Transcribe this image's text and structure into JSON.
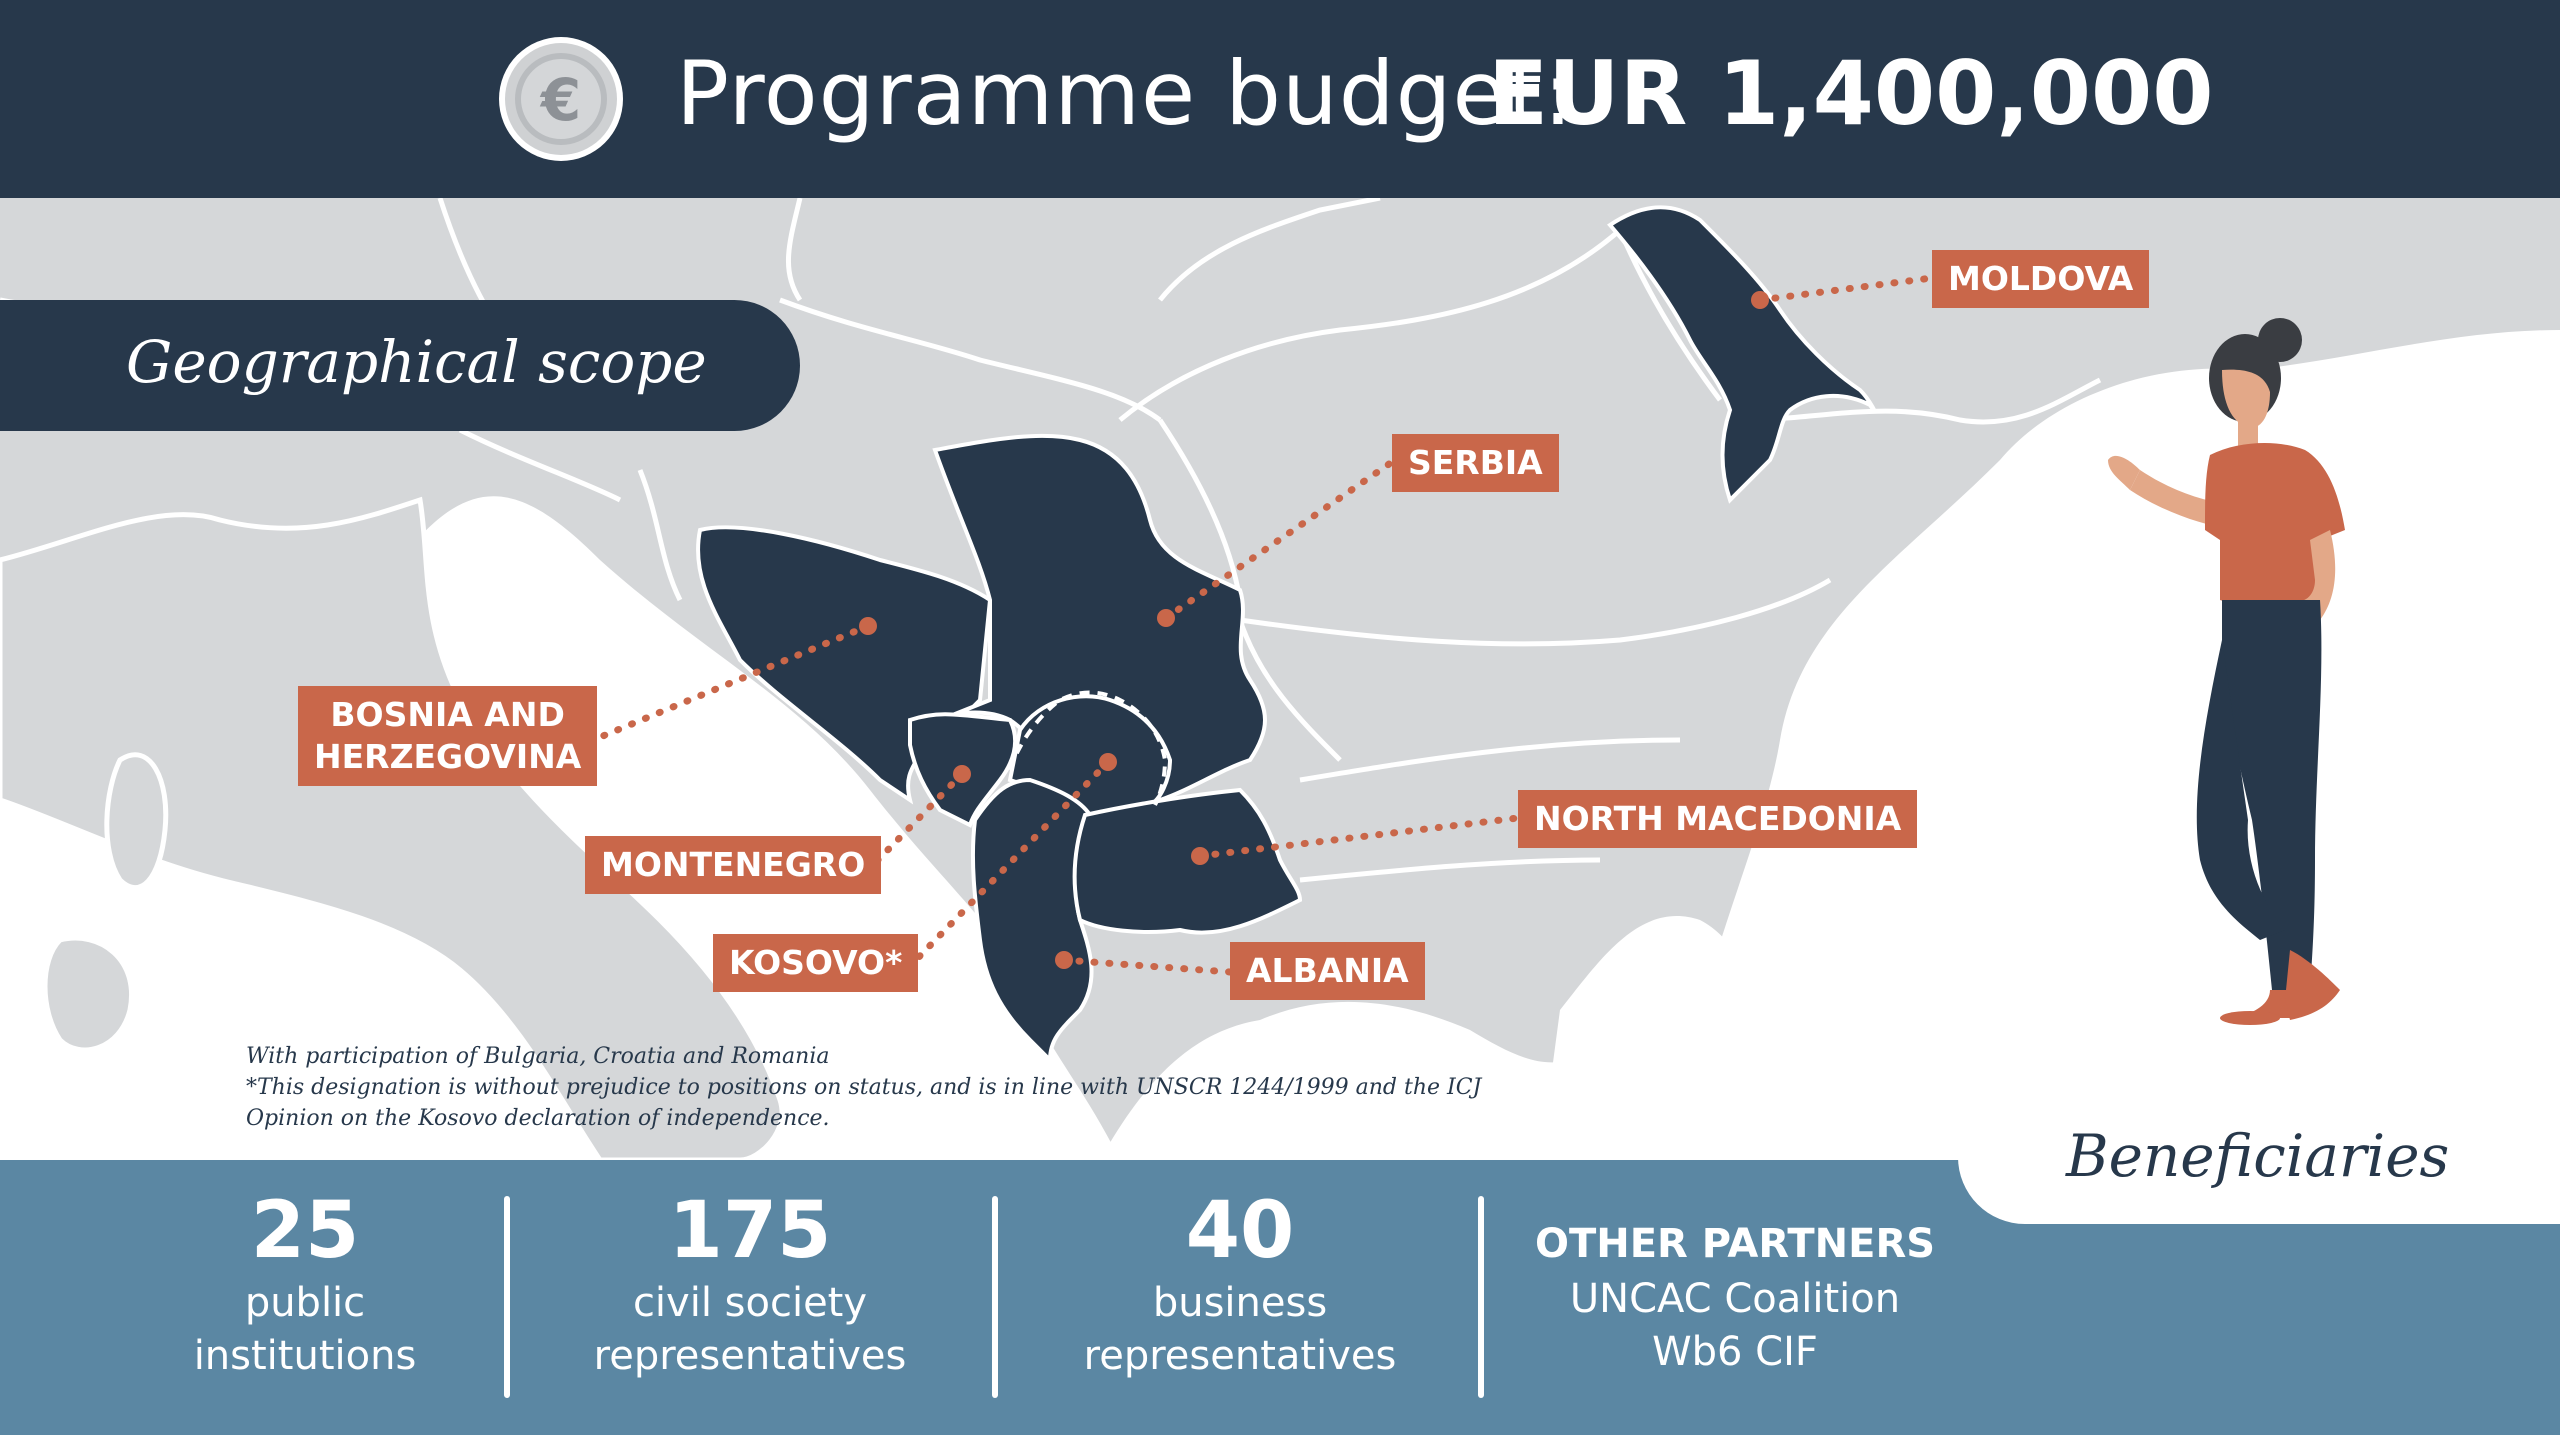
{
  "header": {
    "title_prefix": "Programme budget:",
    "title_amount": "EUR 1,400,000",
    "icon": "euro-coin-icon"
  },
  "map": {
    "section_title": "Geographical scope",
    "countries": [
      {
        "id": "moldova",
        "label": "MOLDOVA"
      },
      {
        "id": "serbia",
        "label": "SERBIA"
      },
      {
        "id": "bosnia",
        "label_line1": "BOSNIA AND",
        "label_line2": "HERZEGOVINA"
      },
      {
        "id": "montenegro",
        "label": "MONTENEGRO"
      },
      {
        "id": "kosovo",
        "label": "KOSOVO*"
      },
      {
        "id": "north_macedonia",
        "label": "NORTH MACEDONIA"
      },
      {
        "id": "albania",
        "label": "ALBANIA"
      }
    ],
    "footnotes": [
      "With participation of Bulgaria, Croatia and Romania",
      "*This designation is without prejudice to positions on status, and is in line with UNSCR 1244/1999 and the ICJ",
      "Opinion on the Kosovo declaration of independence."
    ]
  },
  "beneficiaries": {
    "title": "Beneficiaries",
    "stats": [
      {
        "number": "25",
        "line1": "public",
        "line2": "institutions"
      },
      {
        "number": "175",
        "line1": "civil society",
        "line2": "representatives"
      },
      {
        "number": "40",
        "line1": "business",
        "line2": "representatives"
      }
    ],
    "other_partners": {
      "heading": "OTHER PARTNERS",
      "line1": "UNCAC Coalition",
      "line2": "Wb6 CIF"
    }
  },
  "colors": {
    "navy": "#27384b",
    "accent": "#c9674a",
    "steel_blue": "#5b87a3",
    "land_grey": "#d5d7d9",
    "sea_white": "#ffffff"
  }
}
